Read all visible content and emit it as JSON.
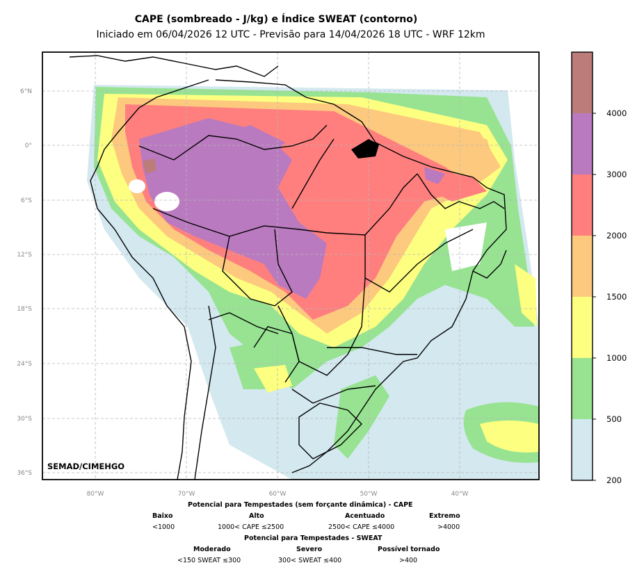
{
  "title": {
    "line1": "CAPE (sombreado - J/kg) e Índice SWEAT (contorno)",
    "line2": "Iniciado em 06/04/2026 12 UTC - Previsão para 14/04/2026 18 UTC - WRF 12km"
  },
  "map": {
    "lat_ticks": [
      "6°N",
      "0°",
      "6°S",
      "12°S",
      "18°S",
      "24°S",
      "30°S",
      "36°S"
    ],
    "lon_ticks": [
      "80°W",
      "70°W",
      "60°W",
      "50°W",
      "40°W"
    ],
    "credit": "SEMAD/CIMEHGO"
  },
  "colorbar": {
    "labels": [
      "4000",
      "3000",
      "2000",
      "1500",
      "1000",
      "500",
      "200"
    ],
    "colors": [
      "#bc7c7a",
      "#b97abf",
      "#fe7f7e",
      "#fdc97e",
      "#fdff80",
      "#97e392",
      "#d3e8ef"
    ]
  },
  "legend": {
    "cape_title": "Potencial para Tempestades (sem forçante dinâmica) - CAPE",
    "cape_levels": [
      {
        "name": "Baixo",
        "range": "<1000"
      },
      {
        "name": "Alto",
        "range": "1000< CAPE ≤2500"
      },
      {
        "name": "Acentuado",
        "range": "2500< CAPE ≤4000"
      },
      {
        "name": "Extremo",
        "range": ">4000"
      }
    ],
    "sweat_title": "Potencial para Tempestades - SWEAT",
    "sweat_levels": [
      {
        "name": "Moderado",
        "range": "<150 SWEAT ≤300"
      },
      {
        "name": "Severo",
        "range": "300< SWEAT ≤400"
      },
      {
        "name": "Possível tornado",
        "range": ">400"
      }
    ]
  }
}
